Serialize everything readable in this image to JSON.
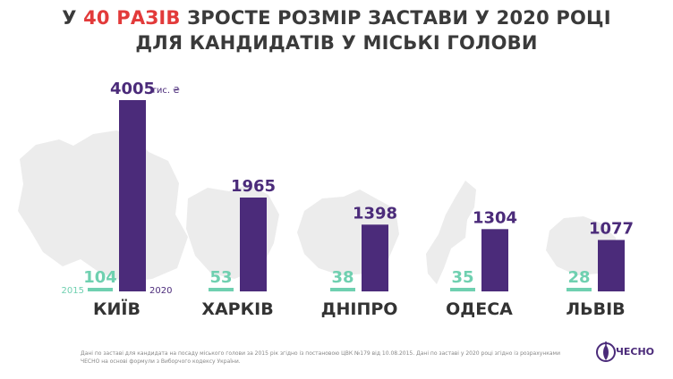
{
  "title": {
    "pre": "У ",
    "highlight": "40 РАЗІВ",
    "post": " ЗРОСТЕ РОЗМІР ЗАСТАВИ У 2020 РОЦІ",
    "line2": "ДЛЯ КАНДИДАТІВ У МІСЬКІ ГОЛОВИ"
  },
  "chart_data": {
    "type": "bar",
    "categories": [
      "КИЇВ",
      "ХАРКІВ",
      "ДНІПРО",
      "ОДЕСА",
      "ЛЬВІВ"
    ],
    "series": [
      {
        "name": "2015",
        "values": [
          104,
          53,
          38,
          35,
          28
        ]
      },
      {
        "name": "2020",
        "values": [
          4005,
          1965,
          1398,
          1304,
          1077
        ]
      }
    ],
    "unit": "тис. ₴",
    "ylim": [
      0,
      4005
    ],
    "grid": false,
    "colors": {
      "2015": "#6fd0b0",
      "2020": "#4b2b7a"
    }
  },
  "footnote": "Дані по заставі для кандидата на посаду міського голови за 2015 рік згідно із постановою ЦВК №179 від 10.08.2015. Дані по заставі у 2020 році згідно із розрахунками ЧЕСНО на основі формули з Виборчого кодексу України.",
  "logo": {
    "text": "ЧЕСНО",
    "icon": "garlic-icon"
  },
  "colors": {
    "accent_red": "#e23a3a",
    "map_gray": "#ececec"
  }
}
